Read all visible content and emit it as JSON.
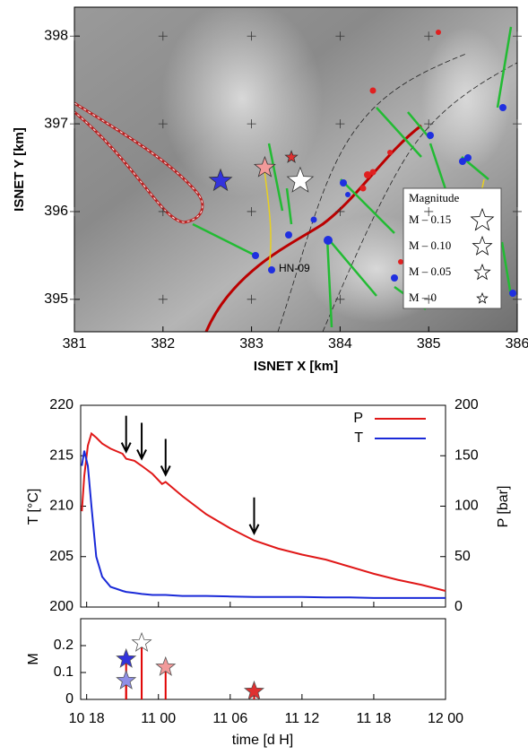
{
  "chart_data": [
    {
      "type": "map",
      "xlabel": "ISNET X [km]",
      "ylabel": "ISNET Y [km]",
      "xlim": [
        381,
        386
      ],
      "ylim": [
        394.63,
        398.33
      ],
      "xticks": [
        381,
        382,
        383,
        384,
        385,
        386
      ],
      "yticks": [
        395,
        396,
        397,
        398
      ],
      "grid": true,
      "points": {
        "x": [
          382.65,
          383.15,
          383.55,
          383.45
        ],
        "y": [
          396.35,
          396.5,
          396.35,
          396.62
        ],
        "colors": [
          "#3333dd",
          "#f29a9a",
          "#ffffff",
          "#e03030"
        ]
      },
      "station_label": "HN-09",
      "legend": {
        "title": "Magnitude",
        "entries": [
          "M – 0.15",
          "M – 0.10",
          "M – 0.05",
          "M – 0"
        ]
      }
    },
    {
      "type": "line",
      "ylabel": "T [°C]",
      "y2label": "P [bar]",
      "xlim": [
        17.5,
        48
      ],
      "ylim": [
        200,
        220
      ],
      "yticks": [
        200,
        205,
        210,
        215,
        220
      ],
      "y2lim": [
        0,
        200
      ],
      "y2ticks": [
        0,
        50,
        100,
        150,
        200
      ],
      "x": [
        17.6,
        17.8,
        18.1,
        18.4,
        18.8,
        19.3,
        20,
        21,
        21.3,
        22,
        22.6,
        23.5,
        24.3,
        24.6,
        26,
        28,
        30,
        32,
        34,
        36,
        38,
        40,
        42,
        44,
        46,
        48
      ],
      "series": [
        {
          "name": "P",
          "color": "#e01818",
          "axis": "y2",
          "values": [
            95,
            130,
            160,
            172,
            168,
            162,
            157,
            152,
            147,
            145,
            140,
            132,
            122,
            124,
            110,
            92,
            78,
            66,
            58,
            52,
            47,
            40,
            33,
            27,
            22,
            16
          ]
        },
        {
          "name": "T",
          "color": "#1a2ad8",
          "values": [
            214,
            215.5,
            214,
            210,
            205,
            203,
            202,
            201.6,
            201.5,
            201.4,
            201.3,
            201.2,
            201.2,
            201.2,
            201.1,
            201.1,
            201.05,
            201,
            201,
            201,
            200.95,
            200.95,
            200.9,
            200.9,
            200.9,
            200.9
          ]
        }
      ],
      "arrows": [
        21.3,
        22.6,
        24.6,
        32
      ]
    },
    {
      "type": "stem",
      "ylabel": "M",
      "xlabel": "time [d H]",
      "xlim": [
        17.5,
        48
      ],
      "ylim": [
        0,
        0.3
      ],
      "yticks": [
        0,
        0.1,
        0.2
      ],
      "xticks": [
        {
          "value": 18,
          "label": "10 18"
        },
        {
          "value": 24,
          "label": "11 00"
        },
        {
          "value": 30,
          "label": "11 06"
        },
        {
          "value": 36,
          "label": "11 12"
        },
        {
          "value": 42,
          "label": "11 18"
        },
        {
          "value": 48,
          "label": "12 00"
        }
      ],
      "x": [
        21.3,
        21.3,
        22.6,
        24.6,
        32
      ],
      "values": [
        0.15,
        0.07,
        0.21,
        0.12,
        0.03
      ],
      "colors": [
        "#3333dd",
        "#8f8fe6",
        "#ffffff",
        "#f29a9a",
        "#e03030"
      ],
      "stem_color": "#e00000"
    }
  ]
}
